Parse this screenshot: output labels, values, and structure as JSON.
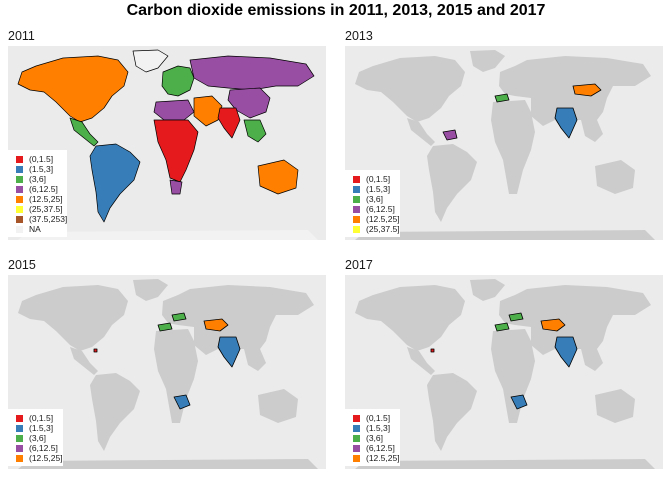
{
  "title": "Carbon dioxide emissions in 2011, 2013, 2015 and 2017",
  "colors": {
    "panel_background": "#ebebeb",
    "land_no_data": "#cccccc",
    "na": "#f2f2f2",
    "outline": "#000000"
  },
  "legend_classes": [
    {
      "label": "(0,1.5]",
      "color": "#e41a1c"
    },
    {
      "label": "(1.5,3]",
      "color": "#377eb8"
    },
    {
      "label": "(3,6]",
      "color": "#4daf4a"
    },
    {
      "label": "(6,12.5]",
      "color": "#984ea3"
    },
    {
      "label": "(12.5,25]",
      "color": "#ff7f00"
    },
    {
      "label": "(25,37.5]",
      "color": "#ffff33"
    },
    {
      "label": "(37.5,253]",
      "color": "#a65628"
    },
    {
      "label": "NA",
      "color": "#f2f2f2"
    }
  ],
  "panels": [
    {
      "year": "2011",
      "legend": [
        {
          "label": "(0,1.5]",
          "color": "#e41a1c"
        },
        {
          "label": "(1.5,3]",
          "color": "#377eb8"
        },
        {
          "label": "(3,6]",
          "color": "#4daf4a"
        },
        {
          "label": "(6,12.5]",
          "color": "#984ea3"
        },
        {
          "label": "(12.5,25]",
          "color": "#ff7f00"
        },
        {
          "label": "(25,37.5]",
          "color": "#ffff33"
        },
        {
          "label": "(37.5,253]",
          "color": "#a65628"
        },
        {
          "label": "NA",
          "color": "#f2f2f2"
        }
      ],
      "regions": {
        "north_america": "#ff7f00",
        "central_america": "#4daf4a",
        "south_america": "#377eb8",
        "europe": "#4daf4a",
        "russia": "#984ea3",
        "china": "#984ea3",
        "middle_east": "#ff7f00",
        "north_africa": "#984ea3",
        "sub_saharan_africa": "#e41a1c",
        "south_africa": "#984ea3",
        "india": "#e41a1c",
        "southeast_asia": "#4daf4a",
        "australia": "#ff7f00",
        "greenland": "#f2f2f2",
        "antarctica": "#f2f2f2"
      }
    },
    {
      "year": "2013",
      "legend": [
        {
          "label": "(0,1.5]",
          "color": "#e41a1c"
        },
        {
          "label": "(1.5,3]",
          "color": "#377eb8"
        },
        {
          "label": "(3,6]",
          "color": "#4daf4a"
        },
        {
          "label": "(6,12.5]",
          "color": "#984ea3"
        },
        {
          "label": "(12.5,25]",
          "color": "#ff7f00"
        },
        {
          "label": "(25,37.5]",
          "color": "#ffff33"
        }
      ],
      "regions": {
        "india": "#377eb8",
        "mongolia": "#ff7f00",
        "venezuela": "#984ea3",
        "turkey": "#4daf4a"
      }
    },
    {
      "year": "2015",
      "legend": [
        {
          "label": "(0,1.5]",
          "color": "#e41a1c"
        },
        {
          "label": "(1.5,3]",
          "color": "#377eb8"
        },
        {
          "label": "(3,6]",
          "color": "#4daf4a"
        },
        {
          "label": "(6,12.5]",
          "color": "#984ea3"
        },
        {
          "label": "(12.5,25]",
          "color": "#ff7f00"
        }
      ],
      "regions": {
        "india": "#377eb8",
        "central_asia": "#ff7f00",
        "turkey": "#4daf4a",
        "ukraine": "#4daf4a",
        "southern_africa": "#377eb8"
      }
    },
    {
      "year": "2017",
      "legend": [
        {
          "label": "(0,1.5]",
          "color": "#e41a1c"
        },
        {
          "label": "(1.5,3]",
          "color": "#377eb8"
        },
        {
          "label": "(3,6]",
          "color": "#4daf4a"
        },
        {
          "label": "(6,12.5]",
          "color": "#984ea3"
        },
        {
          "label": "(12.5,25]",
          "color": "#ff7f00"
        }
      ],
      "regions": {
        "india": "#377eb8",
        "central_asia": "#ff7f00",
        "turkey": "#4daf4a",
        "ukraine": "#4daf4a",
        "southern_africa": "#377eb8"
      }
    }
  ]
}
